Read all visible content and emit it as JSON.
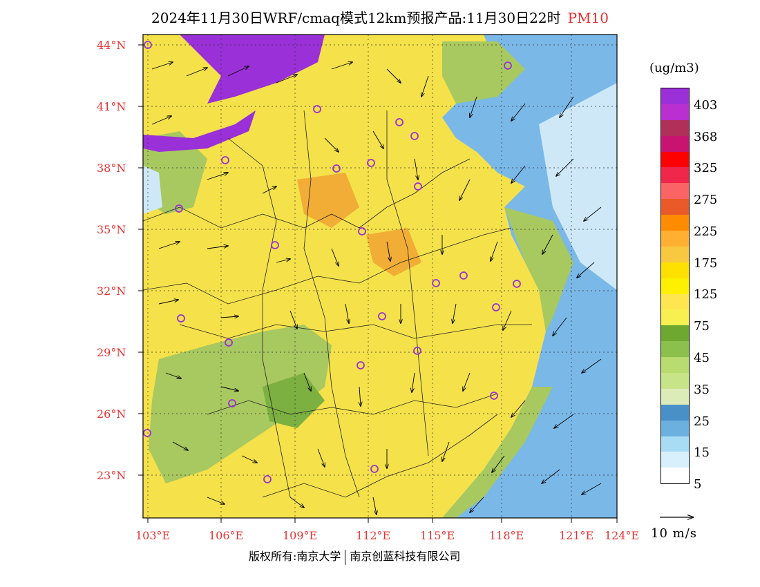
{
  "header": {
    "title": "2024年11月30日WRF/cmaq模式12km预报产品:11月30日22时",
    "pollutant": "PM10"
  },
  "map": {
    "lat_labels": [
      "44°N",
      "41°N",
      "38°N",
      "35°N",
      "32°N",
      "29°N",
      "26°N",
      "23°N"
    ],
    "lon_labels": [
      "103°E",
      "106°E",
      "109°E",
      "112°E",
      "115°E",
      "118°E",
      "121°E",
      "124°E"
    ],
    "colors": {
      "land_yellow": "#f5e14a",
      "land_green": "#a8c860",
      "sea_blue": "#7ab8e8",
      "sea_light": "#cfe8f8",
      "hot_purple": "#9a30d8",
      "hot_orange": "#f0a030",
      "city_marker": "#9a30d8"
    }
  },
  "legend": {
    "unit": "(ug/m3)",
    "colors": [
      "#9c30d8",
      "#b92fd0",
      "#b0305a",
      "#c81470",
      "#ff0000",
      "#f0264a",
      "#fb6464",
      "#ea5a28",
      "#ff8c00",
      "#ffb030",
      "#f8c840",
      "#ffe100",
      "#fff000",
      "#ffe650",
      "#f8f050",
      "#6ea830",
      "#8cc04c",
      "#b8dc70",
      "#c8e488",
      "#dcecb8",
      "#4a90c8",
      "#6cb0e0",
      "#a8dcf4",
      "#d8f0fc",
      "#ffffff"
    ],
    "ticks": [
      "403",
      "368",
      "325",
      "275",
      "225",
      "175",
      "125",
      "75",
      "45",
      "35",
      "25",
      "15",
      "5"
    ]
  },
  "wind_scale": {
    "label": "10 m/s"
  },
  "footer": {
    "copyright_left": "版权所有:南京大学",
    "copyright_right": "南京创蓝科技有限公司"
  }
}
